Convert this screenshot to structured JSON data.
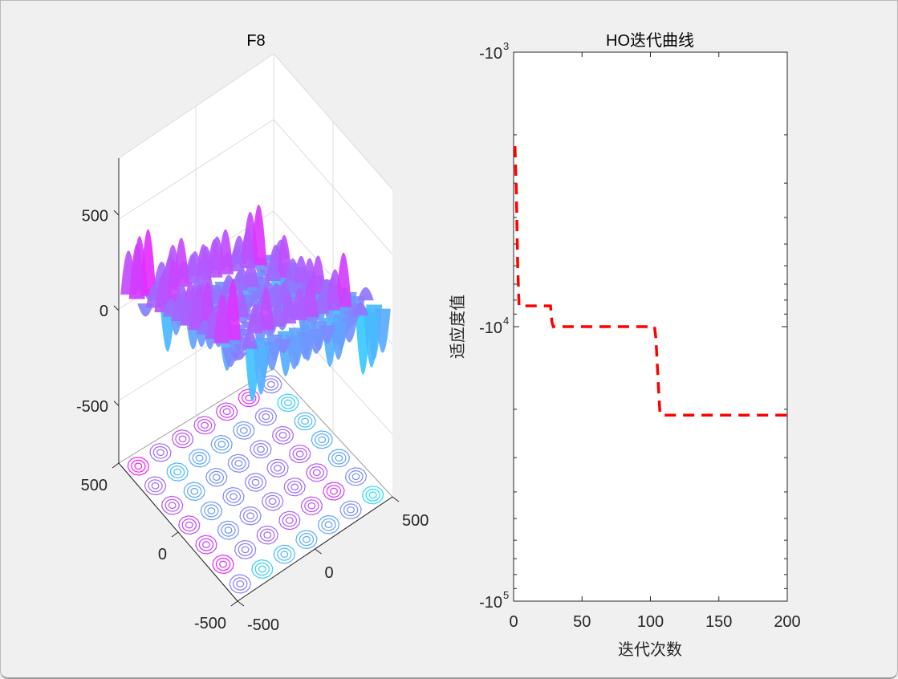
{
  "chart_data": [
    {
      "type": "surface3d",
      "title": "F8",
      "colormap": [
        "#22e0ff",
        "#8a7cff",
        "#ff16ff"
      ],
      "x_ticks": [
        "500",
        "0",
        "-500"
      ],
      "y_ticks": [
        "500",
        "0",
        "-500"
      ],
      "z_ticks": [
        "500",
        "0",
        "-500"
      ],
      "xlim": [
        -500,
        500
      ],
      "ylim": [
        -500,
        500
      ],
      "zlim": [
        -800,
        800
      ],
      "contour_projection": true,
      "grid": true
    },
    {
      "type": "line",
      "title": "HO迭代曲线",
      "xlabel": "迭代次数",
      "ylabel": "适应度值",
      "xlim": [
        0,
        200
      ],
      "y_scale": "log-negative",
      "ylim": [
        -1000,
        -100000
      ],
      "x_ticks": [
        "0",
        "50",
        "100",
        "150",
        "200"
      ],
      "y_ticks": [
        {
          "base": "-10",
          "exp": "3"
        },
        {
          "base": "-10",
          "exp": "4"
        },
        {
          "base": "-10",
          "exp": "5"
        }
      ],
      "line_color": "#ff0000",
      "line_style": "dashed",
      "series": [
        {
          "x": [
            1,
            2,
            3,
            4,
            27,
            28,
            29,
            103,
            104,
            106,
            107,
            108,
            200
          ],
          "y": [
            -2200,
            -3200,
            -6000,
            -8400,
            -8400,
            -9600,
            -10000,
            -10000,
            -11000,
            -17000,
            -20800,
            -21000,
            -21000
          ]
        }
      ]
    }
  ]
}
